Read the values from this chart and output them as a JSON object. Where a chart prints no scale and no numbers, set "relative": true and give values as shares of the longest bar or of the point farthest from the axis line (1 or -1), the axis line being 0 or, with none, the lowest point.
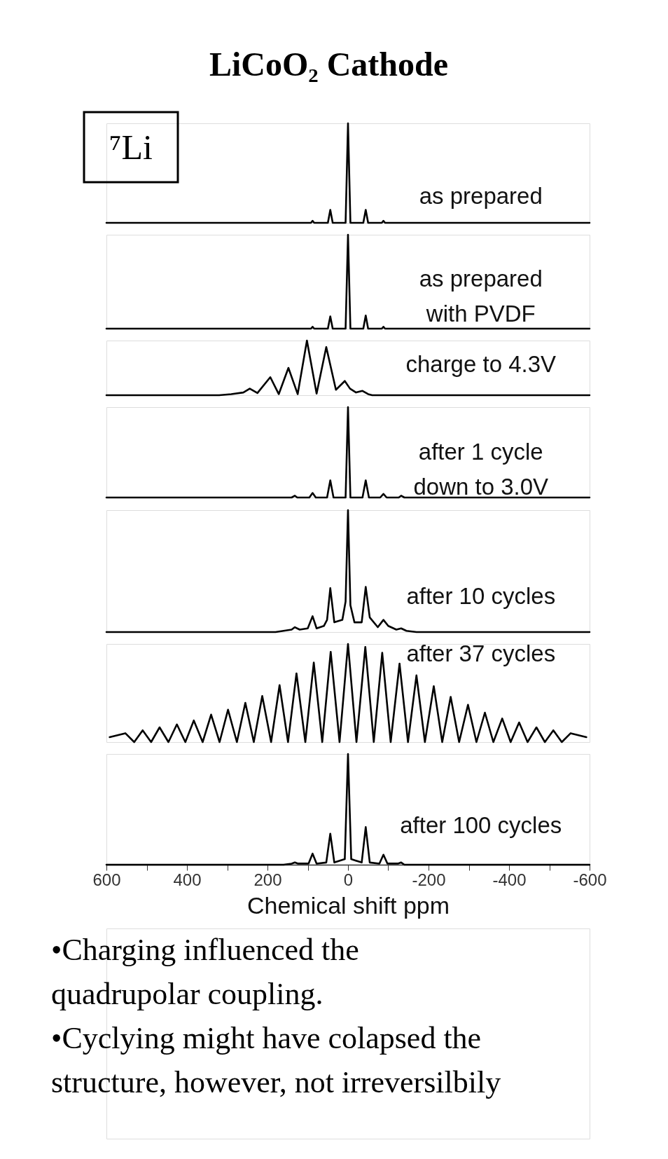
{
  "chart_data": [
    {
      "type": "line",
      "relative": true,
      "title": "LiCoO₂ Cathode",
      "annotations": [
        "⁷Li"
      ],
      "xlim": [
        600,
        -600
      ],
      "tick_labels": false,
      "x": [
        600,
        100,
        92,
        88,
        84,
        50,
        44,
        38,
        6,
        0,
        -6,
        -38,
        -44,
        -50,
        -84,
        -88,
        -92,
        -600
      ],
      "series": [
        {
          "name": "as prepared",
          "color": "#000000",
          "values": [
            0,
            0,
            0,
            0.02,
            0,
            0,
            0.13,
            0,
            0,
            1,
            0,
            0,
            0.13,
            0,
            0,
            0.02,
            0,
            0
          ]
        }
      ]
    },
    {
      "type": "line",
      "relative": true,
      "xlim": [
        600,
        -600
      ],
      "tick_labels": false,
      "x": [
        600,
        100,
        92,
        88,
        84,
        50,
        44,
        38,
        6,
        0,
        -6,
        -38,
        -44,
        -50,
        -84,
        -88,
        -92,
        -600
      ],
      "series": [
        {
          "name": "as prepared\nwith PVDF",
          "color": "#000000",
          "values": [
            0,
            0,
            0,
            0.02,
            0,
            0,
            0.13,
            0,
            0,
            1,
            0,
            0,
            0.14,
            0,
            0,
            0.02,
            0,
            0
          ]
        }
      ]
    },
    {
      "type": "line",
      "relative": true,
      "xlim": [
        600,
        -600
      ],
      "tick_labels": false,
      "x": [
        600,
        320,
        290,
        260,
        244,
        225,
        193,
        172,
        148,
        125,
        102,
        78,
        54,
        30,
        8,
        -5,
        -20,
        -36,
        -50,
        -60,
        -600
      ],
      "series": [
        {
          "name": "charge to 4.3V",
          "color": "#000000",
          "values": [
            0,
            0,
            0.02,
            0.05,
            0.12,
            0.04,
            0.33,
            0.02,
            0.5,
            0.02,
            1,
            0.03,
            0.88,
            0.1,
            0.26,
            0.12,
            0.05,
            0.08,
            0.02,
            0,
            0
          ]
        }
      ]
    },
    {
      "type": "line",
      "relative": true,
      "xlim": [
        600,
        -600
      ],
      "tick_labels": false,
      "x": [
        600,
        140,
        132,
        126,
        96,
        88,
        80,
        52,
        44,
        36,
        6,
        0,
        -6,
        -36,
        -44,
        -52,
        -80,
        -88,
        -96,
        -126,
        -132,
        -140,
        -600
      ],
      "series": [
        {
          "name": "after 1 cycle\ndown to 3.0V",
          "color": "#000000",
          "values": [
            0,
            0,
            0.02,
            0,
            0,
            0.05,
            0,
            0,
            0.19,
            0,
            0,
            1,
            0,
            0,
            0.19,
            0,
            0,
            0.04,
            0,
            0,
            0.02,
            0,
            0
          ]
        }
      ]
    },
    {
      "type": "line",
      "relative": true,
      "xlim": [
        600,
        -600
      ],
      "tick_labels": false,
      "x": [
        600,
        180,
        140,
        132,
        120,
        100,
        88,
        78,
        60,
        52,
        44,
        34,
        14,
        6,
        0,
        -6,
        -16,
        -34,
        -44,
        -54,
        -74,
        -88,
        -100,
        -120,
        -132,
        -145,
        -170,
        -600
      ],
      "series": [
        {
          "name": "after 10 cycles",
          "color": "#000000",
          "values": [
            0,
            0,
            0.02,
            0.04,
            0.02,
            0.03,
            0.13,
            0.03,
            0.05,
            0.1,
            0.36,
            0.08,
            0.1,
            0.25,
            1,
            0.22,
            0.08,
            0.08,
            0.37,
            0.12,
            0.04,
            0.1,
            0.05,
            0.02,
            0.03,
            0.01,
            0,
            0
          ]
        }
      ]
    },
    {
      "type": "line",
      "relative": true,
      "xlim": [
        600,
        -600
      ],
      "tick_labels": false,
      "x": [
        592,
        553,
        531,
        510,
        489,
        468,
        446,
        425,
        404,
        383,
        361,
        340,
        319,
        298,
        276,
        255,
        234,
        213,
        191,
        170,
        149,
        128,
        106,
        85,
        64,
        43,
        21,
        0,
        -21,
        -43,
        -64,
        -85,
        -106,
        -128,
        -149,
        -170,
        -191,
        -213,
        -234,
        -255,
        -276,
        -298,
        -319,
        -340,
        -361,
        -383,
        -404,
        -425,
        -446,
        -468,
        -489,
        -510,
        -531,
        -553,
        -592
      ],
      "series": [
        {
          "name": "after 37 cycles",
          "color": "#000000",
          "values": [
            0.05,
            0.09,
            0,
            0.12,
            0,
            0.15,
            0,
            0.18,
            0,
            0.22,
            0,
            0.28,
            0,
            0.33,
            0,
            0.4,
            0,
            0.47,
            0,
            0.58,
            0,
            0.7,
            0,
            0.81,
            0,
            0.92,
            0,
            1,
            0,
            0.97,
            0,
            0.91,
            0,
            0.8,
            0,
            0.68,
            0,
            0.57,
            0,
            0.46,
            0,
            0.38,
            0,
            0.3,
            0,
            0.24,
            0,
            0.2,
            0,
            0.15,
            0,
            0.12,
            0,
            0.09,
            0.05
          ]
        }
      ]
    },
    {
      "type": "line",
      "relative": true,
      "xlim": [
        600,
        -600
      ],
      "tick_labels": "x",
      "xlabel": "Chemical shift  ppm",
      "xticks": [
        600,
        {
          "value": 500,
          "label": null
        },
        400,
        {
          "value": 300,
          "label": null
        },
        200,
        {
          "value": 100,
          "label": null
        },
        0,
        {
          "value": -100,
          "label": null
        },
        -200,
        {
          "value": -300,
          "label": null
        },
        -400,
        {
          "value": -500,
          "label": null
        },
        -600
      ],
      "annotations": [
        "•Charging influenced the\nquadrupolar coupling.",
        "•Cyclying might have colapsed the\nstructure, however, not irreversilbily"
      ],
      "x": [
        600,
        160,
        140,
        132,
        124,
        98,
        88,
        78,
        54,
        44,
        34,
        8,
        0,
        -8,
        -34,
        -44,
        -54,
        -78,
        -88,
        -98,
        -124,
        -132,
        -140,
        -600
      ],
      "series": [
        {
          "name": "after 100 cycles",
          "color": "#000000",
          "values": [
            0,
            0,
            0.01,
            0.02,
            0.01,
            0.01,
            0.1,
            0.01,
            0.02,
            0.28,
            0.02,
            0.05,
            1,
            0.05,
            0.02,
            0.34,
            0.02,
            0.01,
            0.09,
            0.01,
            0.01,
            0.02,
            0,
            0
          ]
        }
      ]
    }
  ]
}
